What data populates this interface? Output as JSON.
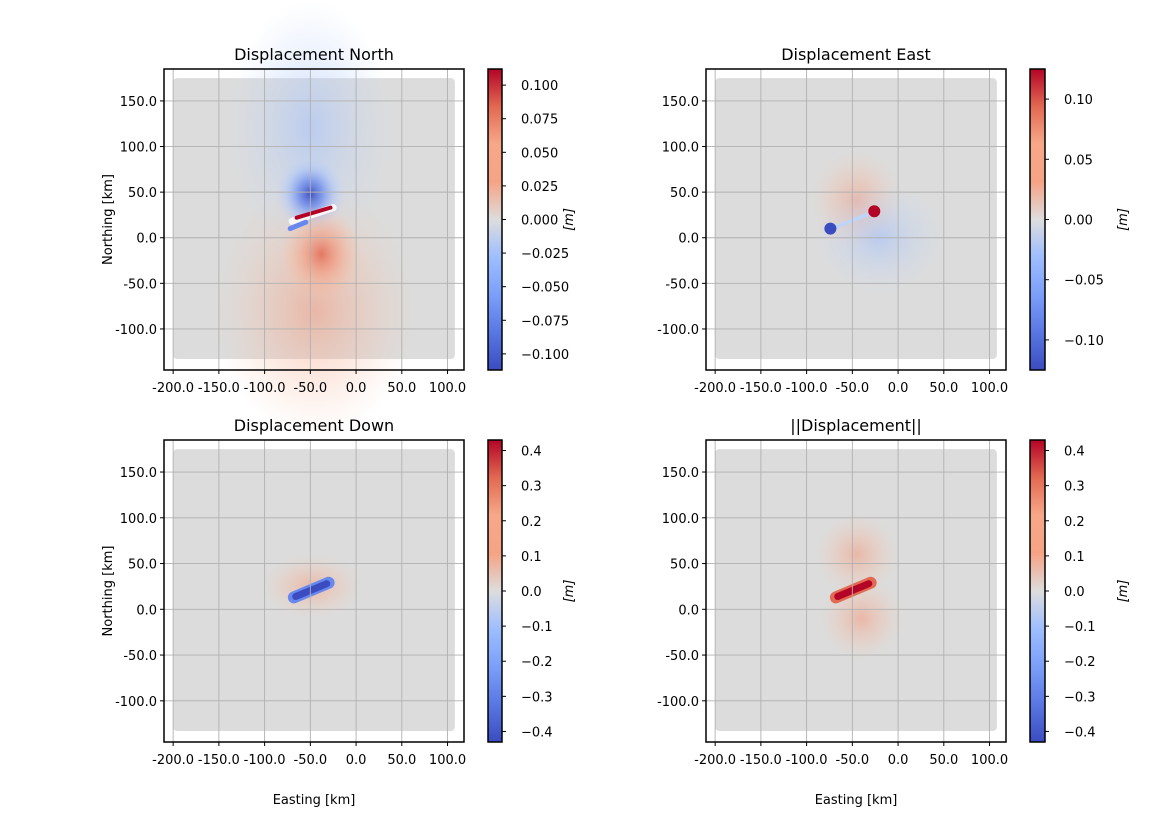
{
  "chart_data": [
    {
      "type": "heatmap",
      "title": "Displacement North",
      "xlabel": "",
      "ylabel": "Northing [km]",
      "xlim": [
        -210,
        118
      ],
      "ylim": [
        -145,
        185
      ],
      "x_ticks": [
        "-200.0",
        "-150.0",
        "-100.0",
        "-50.0",
        "0.0",
        "50.0",
        "100.0"
      ],
      "x_tick_values": [
        -200,
        -150,
        -100,
        -50,
        0,
        50,
        100
      ],
      "y_ticks": [
        "150.0",
        "100.0",
        "50.0",
        "0.0",
        "-50.0",
        "-100.0"
      ],
      "y_tick_values": [
        150,
        100,
        50,
        0,
        -50,
        -100
      ],
      "grid": true,
      "colormap": "coolwarm",
      "data_extent": {
        "x": [
          -200,
          108
        ],
        "y": [
          -133,
          175
        ]
      },
      "colorbar": {
        "label": "[m]",
        "range": [
          -0.112,
          0.112
        ],
        "ticks": [
          "0.100",
          "0.075",
          "0.050",
          "0.025",
          "0.000",
          "−0.025",
          "−0.050",
          "−0.075",
          "−0.100"
        ],
        "tick_values": [
          0.1,
          0.075,
          0.05,
          0.025,
          0.0,
          -0.025,
          -0.05,
          -0.075,
          -0.1
        ]
      }
    },
    {
      "type": "heatmap",
      "title": "Displacement East",
      "xlabel": "",
      "ylabel": "",
      "xlim": [
        -210,
        118
      ],
      "ylim": [
        -145,
        185
      ],
      "x_ticks": [
        "-200.0",
        "-150.0",
        "-100.0",
        "-50.0",
        "0.0",
        "50.0",
        "100.0"
      ],
      "x_tick_values": [
        -200,
        -150,
        -100,
        -50,
        0,
        50,
        100
      ],
      "y_ticks": [
        "150.0",
        "100.0",
        "50.0",
        "0.0",
        "-50.0",
        "-100.0"
      ],
      "y_tick_values": [
        150,
        100,
        50,
        0,
        -50,
        -100
      ],
      "grid": true,
      "colormap": "coolwarm",
      "data_extent": {
        "x": [
          -200,
          108
        ],
        "y": [
          -133,
          175
        ]
      },
      "colorbar": {
        "label": "[m]",
        "range": [
          -0.125,
          0.125
        ],
        "ticks": [
          "0.10",
          "0.05",
          "0.00",
          "−0.05",
          "−0.10"
        ],
        "tick_values": [
          0.1,
          0.05,
          0.0,
          -0.05,
          -0.1
        ]
      }
    },
    {
      "type": "heatmap",
      "title": "Displacement Down",
      "xlabel": "Easting [km]",
      "ylabel": "Northing [km]",
      "xlim": [
        -210,
        118
      ],
      "ylim": [
        -145,
        185
      ],
      "x_ticks": [
        "-200.0",
        "-150.0",
        "-100.0",
        "-50.0",
        "0.0",
        "50.0",
        "100.0"
      ],
      "x_tick_values": [
        -200,
        -150,
        -100,
        -50,
        0,
        50,
        100
      ],
      "y_ticks": [
        "150.0",
        "100.0",
        "50.0",
        "0.0",
        "-50.0",
        "-100.0"
      ],
      "y_tick_values": [
        150,
        100,
        50,
        0,
        -50,
        -100
      ],
      "grid": true,
      "colormap": "coolwarm",
      "data_extent": {
        "x": [
          -200,
          108
        ],
        "y": [
          -133,
          175
        ]
      },
      "colorbar": {
        "label": "[m]",
        "range": [
          -0.43,
          0.43
        ],
        "ticks": [
          "0.4",
          "0.3",
          "0.2",
          "0.1",
          "0.0",
          "−0.1",
          "−0.2",
          "−0.3",
          "−0.4"
        ],
        "tick_values": [
          0.4,
          0.3,
          0.2,
          0.1,
          0.0,
          -0.1,
          -0.2,
          -0.3,
          -0.4
        ]
      }
    },
    {
      "type": "heatmap",
      "title": "||Displacement||",
      "xlabel": "Easting [km]",
      "ylabel": "",
      "xlim": [
        -210,
        118
      ],
      "ylim": [
        -145,
        185
      ],
      "x_ticks": [
        "-200.0",
        "-150.0",
        "-100.0",
        "-50.0",
        "0.0",
        "50.0",
        "100.0"
      ],
      "x_tick_values": [
        -200,
        -150,
        -100,
        -50,
        0,
        50,
        100
      ],
      "y_ticks": [
        "150.0",
        "100.0",
        "50.0",
        "0.0",
        "-50.0",
        "-100.0"
      ],
      "y_tick_values": [
        150,
        100,
        50,
        0,
        -50,
        -100
      ],
      "grid": true,
      "colormap": "coolwarm",
      "data_extent": {
        "x": [
          -200,
          108
        ],
        "y": [
          -133,
          175
        ]
      },
      "colorbar": {
        "label": "[m]",
        "range": [
          -0.43,
          0.43
        ],
        "ticks": [
          "0.4",
          "0.3",
          "0.2",
          "0.1",
          "0.0",
          "−0.1",
          "−0.2",
          "−0.3",
          "−0.4"
        ],
        "tick_values": [
          0.4,
          0.3,
          0.2,
          0.1,
          0.0,
          -0.1,
          -0.2,
          -0.3,
          -0.4
        ]
      }
    }
  ]
}
